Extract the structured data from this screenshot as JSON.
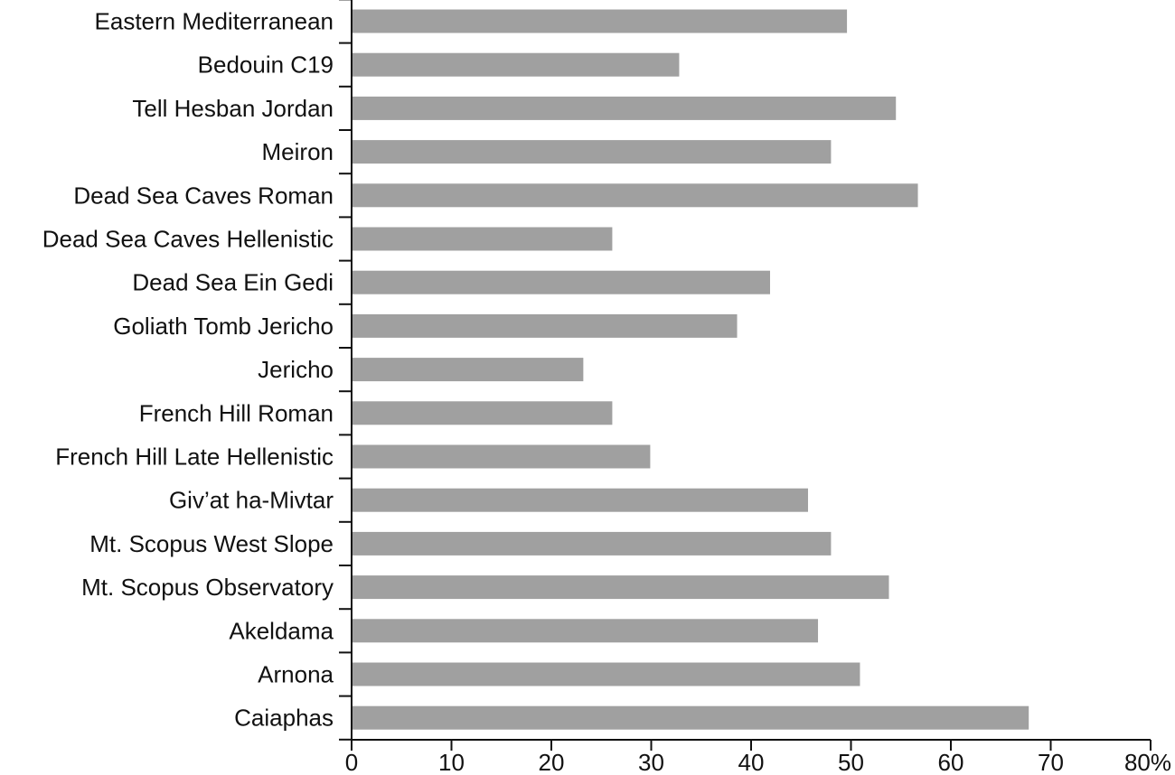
{
  "chart_data": {
    "type": "bar",
    "orientation": "horizontal",
    "categories": [
      "Eastern Mediterranean",
      "Bedouin C19",
      "Tell Hesban Jordan",
      "Meiron",
      "Dead Sea Caves Roman",
      "Dead Sea Caves Hellenistic",
      "Dead Sea Ein Gedi",
      "Goliath Tomb Jericho",
      "Jericho",
      "French Hill Roman",
      "French Hill Late Hellenistic",
      "Giv’at ha-Mivtar",
      "Mt. Scopus West Slope",
      "Mt. Scopus Observatory",
      "Akeldama",
      "Arnona",
      "Caiaphas"
    ],
    "values": [
      49.6,
      32.8,
      54.5,
      48.0,
      56.7,
      26.1,
      41.9,
      38.6,
      23.2,
      26.1,
      29.9,
      45.7,
      48.0,
      53.8,
      46.7,
      50.9,
      67.8
    ],
    "title": "",
    "xlabel": "",
    "ylabel": "",
    "xlim": [
      0,
      80
    ],
    "ticks": [
      "0",
      "10",
      "20",
      "30",
      "40",
      "50",
      "60",
      "70",
      "80%"
    ],
    "bar_color": "#a0a0a0",
    "grid": false
  }
}
